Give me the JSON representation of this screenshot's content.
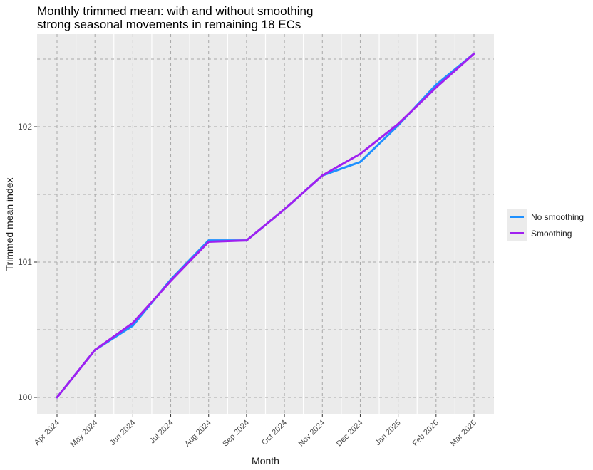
{
  "chart_data": {
    "type": "line",
    "title": "Monthly trimmed mean: with and without smoothing",
    "subtitle": "strong seasonal movements in remaining 18 ECs",
    "xlabel": "Month",
    "ylabel": "Trimmed mean index",
    "x": [
      "Apr 2024",
      "May 2024",
      "Jun 2024",
      "Jul 2024",
      "Aug 2024",
      "Sep 2024",
      "Oct 2024",
      "Nov 2024",
      "Dec 2024",
      "Jan 2025",
      "Feb 2025",
      "Mar 2025"
    ],
    "series": [
      {
        "name": "No smoothing",
        "color": "#1e90ff",
        "values": [
          100.0,
          100.35,
          100.53,
          100.87,
          101.16,
          101.16,
          101.39,
          101.64,
          101.74,
          102.01,
          102.31,
          102.54
        ]
      },
      {
        "name": "Smoothing",
        "color": "#a020f0",
        "values": [
          100.0,
          100.35,
          100.55,
          100.86,
          101.15,
          101.16,
          101.39,
          101.64,
          101.8,
          102.02,
          102.29,
          102.54
        ]
      }
    ],
    "yticks": [
      100,
      101,
      102
    ],
    "ylim": [
      99.88,
      102.63
    ],
    "grid": true,
    "legend_position": "right"
  },
  "legend": {
    "items": [
      {
        "label": "No smoothing",
        "color": "#1e90ff"
      },
      {
        "label": "Smoothing",
        "color": "#a020f0"
      }
    ]
  }
}
